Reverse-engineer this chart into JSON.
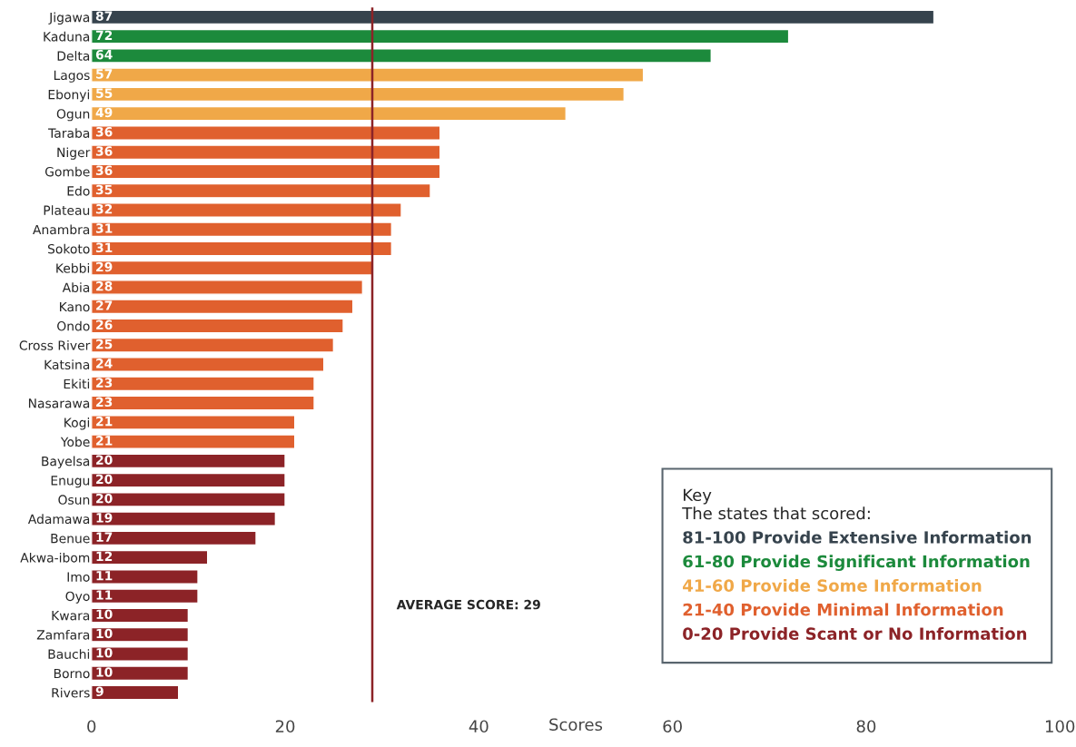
{
  "chart_data": {
    "type": "bar",
    "orientation": "horizontal",
    "xlabel": "Scores",
    "legend_title": "Key\nThe states that scored:",
    "categories": [
      "Jigawa",
      "Kaduna",
      "Delta",
      "Lagos",
      "Ebonyi",
      "Ogun",
      "Taraba",
      "Niger",
      "Gombe",
      "Edo",
      "Plateau",
      "Anambra",
      "Sokoto",
      "Kebbi",
      "Abia",
      "Kano",
      "Ondo",
      "Cross River",
      "Katsina",
      "Ekiti",
      "Nasarawa",
      "Kogi",
      "Yobe",
      "Bayelsa",
      "Enugu",
      "Osun",
      "Adamawa",
      "Benue",
      "Akwa-ibom",
      "Imo",
      "Oyo",
      "Kwara",
      "Zamfara",
      "Bauchi",
      "Borno",
      "Rivers"
    ],
    "series": [
      {
        "name": "81-100 Provide Extensive Information",
        "color": "#36434d",
        "values": [
          87,
          null,
          null,
          null,
          null,
          null,
          null,
          null,
          null,
          null,
          null,
          null,
          null,
          null,
          null,
          null,
          null,
          null,
          null,
          null,
          null,
          null,
          null,
          null,
          null,
          null,
          null,
          null,
          null,
          null,
          null,
          null,
          null,
          null,
          null,
          null
        ]
      },
      {
        "name": "61-80 Provide Significant Information",
        "color": "#1c8a3c",
        "values": [
          null,
          72,
          64,
          null,
          null,
          null,
          null,
          null,
          null,
          null,
          null,
          null,
          null,
          null,
          null,
          null,
          null,
          null,
          null,
          null,
          null,
          null,
          null,
          null,
          null,
          null,
          null,
          null,
          null,
          null,
          null,
          null,
          null,
          null,
          null,
          null
        ]
      },
      {
        "name": "41-60 Provide Some Information",
        "color": "#f0a848",
        "values": [
          null,
          null,
          null,
          57,
          55,
          49,
          null,
          null,
          null,
          null,
          null,
          null,
          null,
          null,
          null,
          null,
          null,
          null,
          null,
          null,
          null,
          null,
          null,
          null,
          null,
          null,
          null,
          null,
          null,
          null,
          null,
          null,
          null,
          null,
          null,
          null
        ]
      },
      {
        "name": "21-40 Provide Minimal Information",
        "color": "#e0602e",
        "values": [
          null,
          null,
          null,
          null,
          null,
          null,
          36,
          36,
          36,
          35,
          32,
          31,
          31,
          29,
          28,
          27,
          26,
          25,
          24,
          23,
          23,
          21,
          21,
          null,
          null,
          null,
          null,
          null,
          null,
          null,
          null,
          null,
          null,
          null,
          null,
          null
        ]
      },
      {
        "name": "0-20 Provide Scant or No Information",
        "color": "#8c2327",
        "values": [
          null,
          null,
          null,
          null,
          null,
          null,
          null,
          null,
          null,
          null,
          null,
          null,
          null,
          null,
          null,
          null,
          null,
          null,
          null,
          null,
          null,
          null,
          null,
          20,
          20,
          20,
          19,
          17,
          12,
          11,
          11,
          10,
          10,
          10,
          10,
          9
        ]
      }
    ],
    "data_labels": true,
    "xlim": [
      0,
      100
    ],
    "xticks": [
      0,
      20,
      40,
      60,
      80,
      100
    ],
    "ref_lines": [
      {
        "axis": "x",
        "value": 29,
        "label": "AVERAGE SCORE: 29",
        "color": "#8c2327"
      }
    ],
    "legend": "bottom right",
    "grid": false
  }
}
